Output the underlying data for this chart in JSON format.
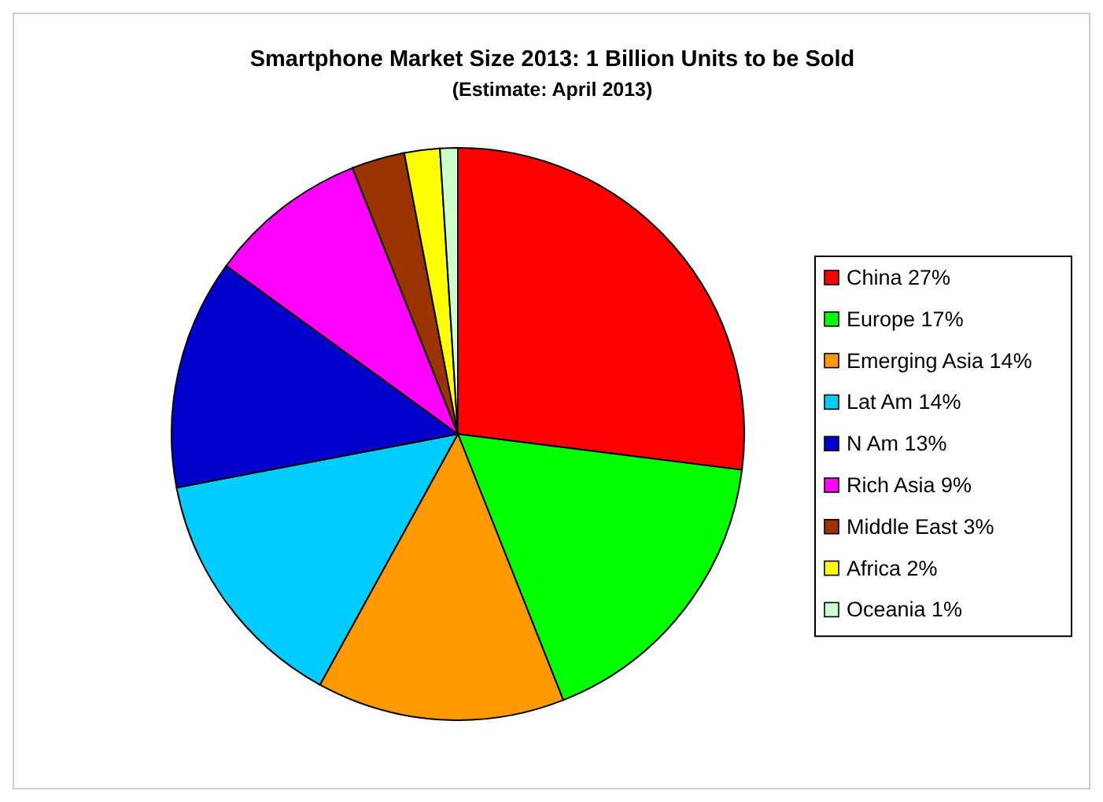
{
  "chart_data": {
    "type": "pie",
    "title": "Smartphone Market Size 2013: 1 Billion Units to be Sold",
    "subtitle": "(Estimate: April 2013)",
    "categories": [
      "China",
      "Europe",
      "Emerging Asia",
      "Lat Am",
      "N Am",
      "Rich Asia",
      "Middle East",
      "Africa",
      "Oceania"
    ],
    "values": [
      27,
      17,
      14,
      14,
      13,
      9,
      3,
      2,
      1
    ],
    "value_labels": [
      "27%",
      "17%",
      "14%",
      "14%",
      "13%",
      "9%",
      "3%",
      "2%",
      "1%"
    ],
    "colors": [
      "#ff0000",
      "#00ff00",
      "#ff9900",
      "#00ccff",
      "#0000cc",
      "#ff00ff",
      "#993300",
      "#ffff00",
      "#ccffcc"
    ],
    "legend": "right"
  }
}
